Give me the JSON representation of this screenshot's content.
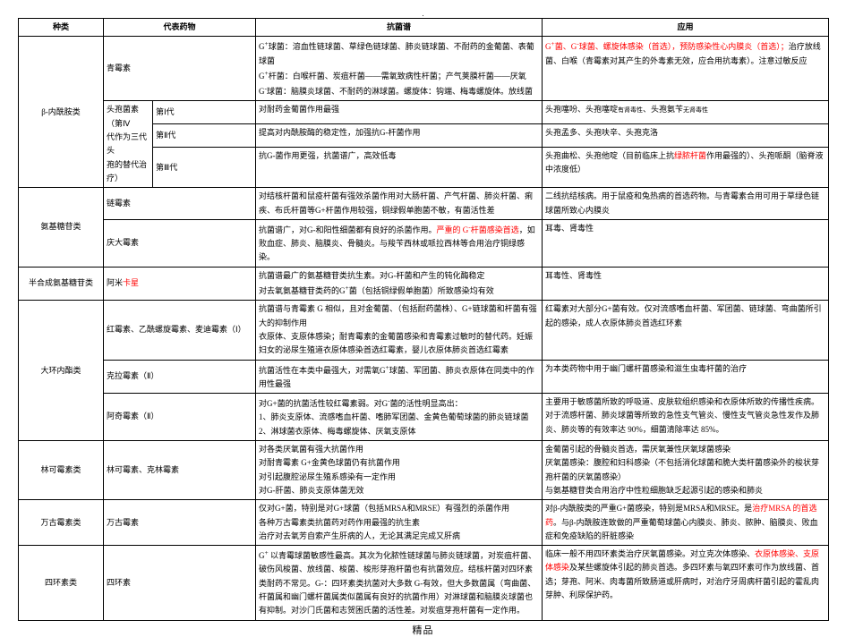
{
  "top_marker": ".",
  "footer": "精品",
  "col_widths": [
    "95px",
    "55px",
    "115px",
    "320px",
    "320px"
  ],
  "headers": [
    "种类",
    "代表药物",
    "抗菌谱",
    "应用"
  ],
  "rows": [
    {
      "cells": [
        {
          "text": "β-内酰胺类",
          "rowspan": 4,
          "class": "col1"
        },
        {
          "text": "青霉素",
          "colspan": 2,
          "class": "col2"
        },
        {
          "html": "G<sup>+</sup>球菌：<span>溶血性链球菌、草绿色链球菌、肺炎链球菌、不耐药的金葡菌、表葡球菌</span><br>G<sup>+</sup>杆菌：<span>白喉杆菌、炭疽杆菌——需氧致病性杆菌；产气荚膜杆菌——厌氧</span><br>G<sup>-</sup>球菌：<span>脑膜炎球菌、不耐药的淋球菌。螺旋体：钩端、梅毒螺旋体。放线菌</span>"
        },
        {
          "html": "<span class=\"red\">G<sup>+</sup>菌、G<sup>-</sup>球菌、螺旋体感染（首选），预防感染性心内膜炎（首选）；</span>治疗放线菌、白喉（青霉素对其产生的外毒素无效，应合用抗毒素）。注意过敏反应"
        }
      ]
    },
    {
      "cells": [
        {
          "html": "头孢菌素（第Ⅳ<br>代作为三代头<br>孢的替代治疗）",
          "rowspan": 3,
          "class": "col2"
        },
        {
          "text": "第Ⅰ代",
          "class": "col2"
        },
        {
          "text": "对耐药金葡菌作用最强"
        },
        {
          "html": "头孢噻吩、头孢噻啶<span style=\"font-size:7px\">有肾毒性</span>、头孢氨苄<span style=\"font-size:7px\">无肾毒性</span>"
        }
      ]
    },
    {
      "cells": [
        {
          "text": "第Ⅱ代",
          "class": "col2"
        },
        {
          "text": "提高对内酰胺酶的稳定性，加强抗G-杆菌作用"
        },
        {
          "text": "头孢孟多、头孢呋辛、头孢克洛"
        }
      ]
    },
    {
      "cells": [
        {
          "text": "第Ⅲ代",
          "class": "col2"
        },
        {
          "text": "抗G-菌作用更强，抗菌谱广，高效低毒"
        },
        {
          "html": "头孢曲松、头孢他啶（目前临床上抗<span class=\"red\">绿脓杆菌</span>作用最强的）、头孢哌酮（脑脊液中浓度低）"
        }
      ]
    },
    {
      "cells": [
        {
          "text": "氨基糖苷类",
          "rowspan": 2,
          "class": "col1"
        },
        {
          "text": "链霉素",
          "colspan": 2,
          "class": "col2"
        },
        {
          "text": "对结核杆菌和鼠疫杆菌有强效杀菌作用对大肠杆菌、产气杆菌、肺炎杆菌、痢疾、布氏杆菌等G+杆菌作用较强，铜绿假单胞菌不敏，有菌活性差"
        },
        {
          "text": "二线抗结核病。用于鼠疫和兔热病的首选药物。与青霉素合用可用于草绿色链球菌所致心内膜炎"
        }
      ]
    },
    {
      "cells": [
        {
          "text": "庆大霉素",
          "colspan": 2,
          "class": "col2"
        },
        {
          "html": "抗菌谱广，对G-和阳性细菌都有良好的杀菌作用。<span class=\"red\">严重的 G<sup>-</sup>杆菌感染首选</span>，如败血症、肺炎、脑膜炎、骨髓炎。与羧苄西林或哌拉西林等合用治疗铜绿感染。"
        },
        {
          "text": "耳毒、肾毒性"
        }
      ]
    },
    {
      "cells": [
        {
          "text": "半合成氨基糖苷类",
          "class": "col1"
        },
        {
          "html": "阿米<span class=\"red\">卡星</span>",
          "colspan": 2,
          "class": "col2"
        },
        {
          "html": "抗菌谱最广的氨基糖苷类抗生素。对G-杆菌和产生的钝化酶稳定<br>对去氧氨基糖苷类药的G<sup>+</sup>菌（包括铜绿假单胞菌）所致感染均有效"
        },
        {
          "text": "耳毒性、肾毒性"
        }
      ]
    },
    {
      "cells": [
        {
          "text": "大环内酯类",
          "rowspan": 3,
          "class": "col1"
        },
        {
          "text": "红霉素、乙酰螺旋霉素、麦迪霉素（Ⅰ）",
          "colspan": 2,
          "class": "col2"
        },
        {
          "html": "抗菌谱与青霉素 G 相似，且对金葡菌、（包括耐药菌株）、G+链球菌和杆菌有强大的抑制作用<br>衣原体、支原体感染；耐青霉素的金葡菌感染和青霉素过敏时的替代药。妊娠妇女的泌尿生殖道衣原体感染首选红霉素，婴儿衣原体肺炎首选红霉素"
        },
        {
          "text": "红霉素对大部分G+菌有效。仅对流感嗜血杆菌、军团菌、链球菌、弯曲菌所引起的感染，成人衣原体肺炎首选红环素"
        }
      ]
    },
    {
      "cells": [
        {
          "text": "克拉霉素（Ⅱ）",
          "colspan": 2,
          "class": "col2"
        },
        {
          "html": "抗菌活性在本类中最强大，对需氧G<sup>+</sup>球菌、军团菌、肺炎衣原体在同类中的作用性最强"
        },
        {
          "text": "为本类药物中用于幽门螺杆菌感染和滋生虫毒杆菌的治疗"
        }
      ]
    },
    {
      "cells": [
        {
          "text": "阿奇霉素（Ⅱ）",
          "colspan": 2,
          "class": "col2"
        },
        {
          "html": "对G+菌的抗菌活性较红霉素弱。对G<sup>-</sup>菌的活性明显高出：<br>1、肺炎支原体、流感嗜血杆菌、嗜肺军团菌、金黄色葡萄球菌的肺炎链球菌<br>2、淋球菌衣原体、梅毒螺旋体、厌氧支原体"
        },
        {
          "html": "主要用于敏感菌所致的呼吸道、皮肤软组织感染和衣原体所致的传播性疾病。对于流感杆菌、肺炎球菌等所致的急性支气管炎、慢性支气管炎急性发作及肺炎、肺炎等的有效率达 90%，细菌清除率达 85%。"
        }
      ]
    },
    {
      "cells": [
        {
          "text": "林可霉素类",
          "class": "col1"
        },
        {
          "text": "林可霉素、克林霉素",
          "colspan": 2,
          "class": "col2"
        },
        {
          "html": "对各类厌氧菌有强大抗菌作用<br>对耐青霉素 G+金黄色球菌仍有抗菌作用<br>对引起腹腔泌尿生殖系感染有一定作用<br>对G-肝菌、肺炎支原体菌无效",
          "rowspan": 1
        },
        {
          "html": "金葡菌引起的骨髓炎首选，需厌氧兼性厌氧球菌感染<br>厌氧菌感染：腹腔和妇科感染（不包括消化球菌和脆大类杆菌感染外的梭状芽孢杆菌的厌氧菌感染）<br>与氨基糖苷类合用治疗中性粒细胞缺乏起源引起的感染和肺炎"
        }
      ]
    },
    {
      "cells": [
        {
          "text": "万古霉素类",
          "class": "col1"
        },
        {
          "text": "万古霉素",
          "colspan": 2,
          "class": "col2"
        },
        {
          "html": "仅对G+菌，特别是对G+球菌（包括MRSA和MRSE）有强烈的杀菌作用<br>各种万古霉素类抗菌药对药作用最强的抗生素<br>治疗对去氧芳自索产生肝病的人，无论其满足完成又肝病"
        },
        {
          "html": "对β-内酰胺类的严重G+菌感染，特别是MRSA和MRSE。是<span class=\"red\">治疗MRSA 的首选药</span>。与β-内酰胺连致做的严重葡萄球菌心内膜炎、肺炎、脓肿、脑膜炎、败血症和免疫缺陷的肝脏感染"
        }
      ]
    },
    {
      "cells": [
        {
          "text": "四环素类",
          "class": "col1"
        },
        {
          "text": "四环素",
          "colspan": 2,
          "class": "col2"
        },
        {
          "html": "G<sup>+</sup> 以青霉球菌敏感性最高。其次为化脓性链球菌与肺炎链球菌，对炭疽杆菌、破伤风梭菌、放线菌、梭菌、梭形芽孢杆菌也有抗菌效应。结核杆菌对四环素类耐药不常见。G-：四环素类抗菌对大多数 G-有效，但大多数菌属（弯曲菌、杆菌属和幽门螺杆菌属类似菌属有良好的抗菌作用）对淋球菌和脑膜炎球菌也有抑制。对沙门氏菌和志贺困氏菌的活性差。对炭疽芽孢杆菌有一定作用。"
        },
        {
          "html": "临床一般不用四环素类治疗厌氧菌感染。对立克次体感染、<span class=\"red\">衣原体感染、支原体感染</span>及某些螺旋体引起的肺炎首选。多四环素与氧四环素可作为放线菌、首选；芽孢、阿米、肉毒菌所致肠道或肝病时，对治疗牙周病杆菌引起的霍乱肉芽肿、利尿保护药。"
        }
      ]
    }
  ]
}
